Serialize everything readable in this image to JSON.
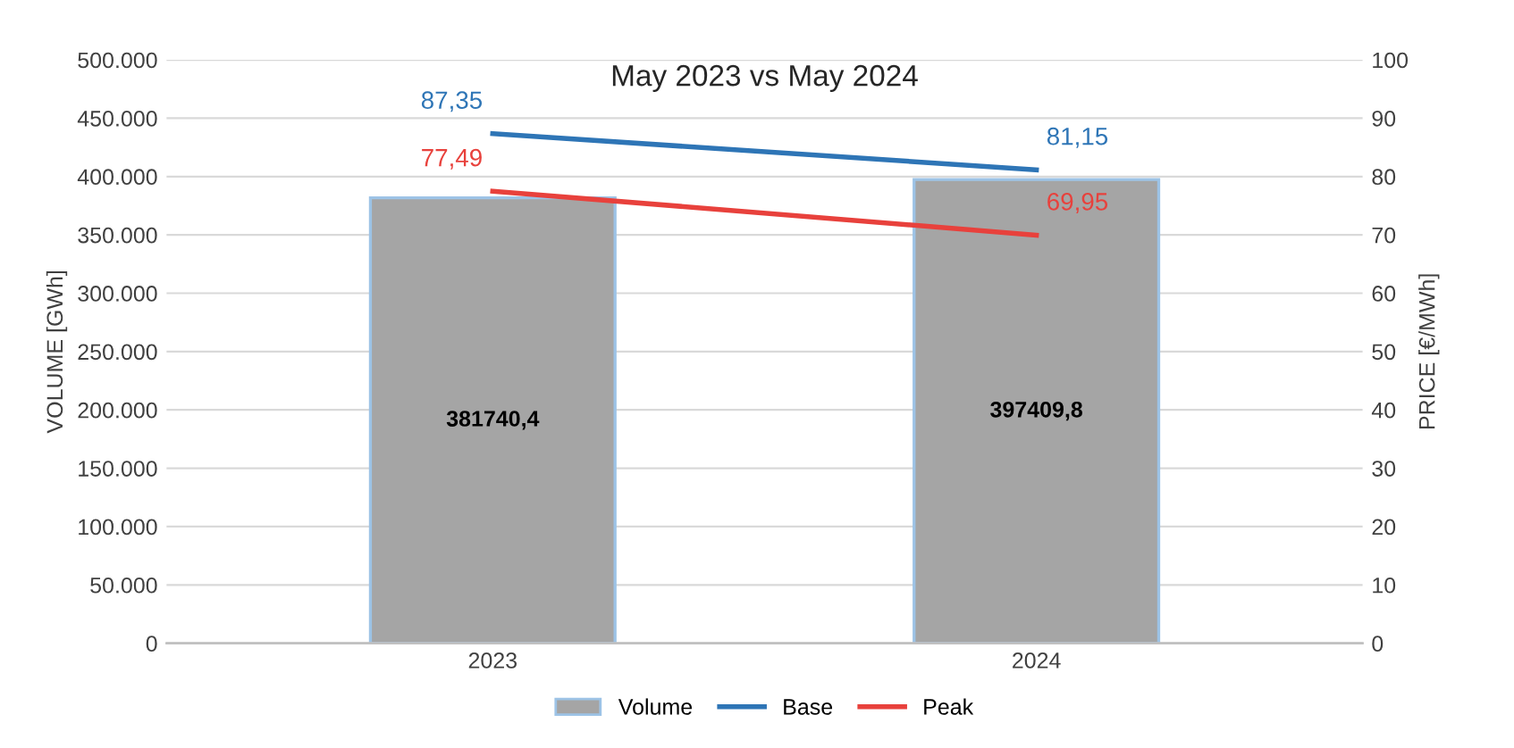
{
  "chart_data": {
    "type": "bar",
    "title": "May 2023 vs May 2024",
    "ylabel": "VOLUME [GWh]",
    "y2label": "PRICE [€/MWh]",
    "categories": [
      "2023",
      "2024"
    ],
    "series": [
      {
        "name": "Volume",
        "color": "#a5a5a5",
        "values": [
          381740.4,
          397409.8
        ],
        "value_labels": [
          "381740,4",
          "397409,8"
        ]
      },
      {
        "name": "Base",
        "type": "line",
        "axis": "y2",
        "color": "#2e75b6",
        "values": [
          87.35,
          81.15
        ],
        "value_labels": [
          "87,35",
          "81,15"
        ]
      },
      {
        "name": "Peak",
        "type": "line",
        "axis": "y2",
        "color": "#e8413c",
        "values": [
          77.49,
          69.95
        ],
        "value_labels": [
          "77,49",
          "69,95"
        ]
      }
    ],
    "ylim": [
      0,
      500000
    ],
    "yticks": [
      0,
      {
        "value": 50000,
        "label": "50.000"
      },
      {
        "value": 100000,
        "label": "100.000"
      },
      {
        "value": 150000,
        "label": "150.000"
      },
      {
        "value": 200000,
        "label": "200.000"
      },
      {
        "value": 250000,
        "label": "250.000"
      },
      {
        "value": 300000,
        "label": "300.000"
      },
      {
        "value": 350000,
        "label": "350.000"
      },
      {
        "value": 400000,
        "label": "400.000"
      },
      {
        "value": 450000,
        "label": "450.000"
      },
      {
        "value": 500000,
        "label": "500.000"
      }
    ],
    "y2lim": [
      0,
      100
    ],
    "y2ticks": [
      0,
      10,
      20,
      30,
      40,
      50,
      60,
      70,
      80,
      90,
      100
    ],
    "grid": "y",
    "legend": "bottom",
    "marker": "none",
    "line_style": "solid"
  }
}
